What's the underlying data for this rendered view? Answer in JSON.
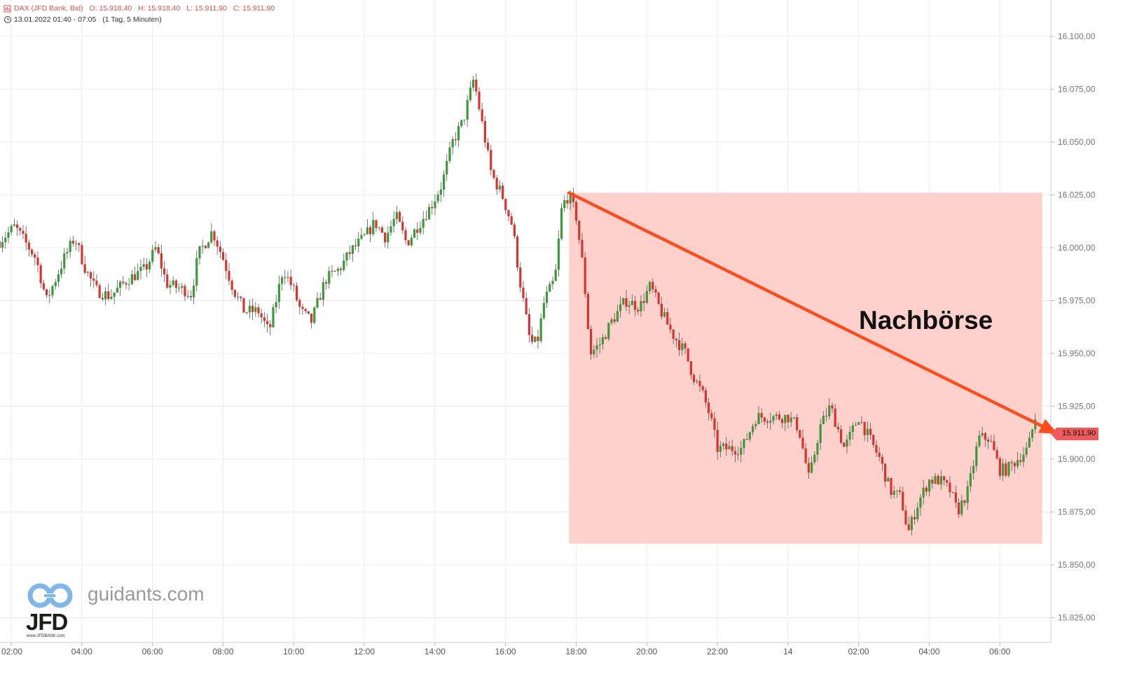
{
  "header": {
    "symbol": "DAX (JFD Bank, Bid)",
    "ohlc_open": "O: 15.918,40",
    "ohlc_high": "H: 15.918,40",
    "ohlc_low": "L: 15.911,90",
    "ohlc_close": "C: 15.911,90",
    "range": "13.01.2022 01:40 - 07:05",
    "interval": "(1 Tag, 5 Minuten)"
  },
  "watermark": {
    "site": "guidants.com",
    "logo": "JFD",
    "logo_sub": "www.JFDBANK.com"
  },
  "annotation": {
    "text": "Nachbörse"
  },
  "last_price": {
    "label": "15.911,90",
    "value": 15911.9
  },
  "colors": {
    "up": "#3a9a3a",
    "down": "#d9332f",
    "highlight": "#ffcfc9",
    "arrow": "#ff4d1f",
    "grid": "#ececec"
  },
  "chart_data": {
    "type": "candlestick",
    "ylim": [
      15810,
      16115
    ],
    "y_ticks": [
      15825,
      15850,
      15875,
      15900,
      15925,
      15950,
      15975,
      16000,
      16025,
      16050,
      16075,
      16100
    ],
    "y_tick_labels": [
      "15.825,00",
      "15.850,00",
      "15.875,00",
      "15.900,00",
      "15.925,00",
      "15.950,00",
      "15.975,00",
      "16.000,00",
      "16.025,00",
      "16.050,00",
      "16.075,00",
      "16.100,00"
    ],
    "x_ticks": [
      "02:00",
      "04:00",
      "06:00",
      "08:00",
      "10:00",
      "12:00",
      "14:00",
      "16:00",
      "18:00",
      "20:00",
      "22:00",
      "14",
      "02:00",
      "04:00",
      "06:00"
    ],
    "x_tick_hours": [
      2,
      4,
      6,
      8,
      10,
      12,
      14,
      16,
      18,
      20,
      22,
      24,
      26,
      28,
      30
    ],
    "x_start_hour": 1.67,
    "x_end_hour": 31.08,
    "candle_minutes": 5,
    "key_levels": [
      {
        "h": 1.67,
        "v": 16003
      },
      {
        "h": 2.1,
        "v": 16010
      },
      {
        "h": 2.7,
        "v": 15995
      },
      {
        "h": 3.0,
        "v": 15975
      },
      {
        "h": 3.5,
        "v": 15995
      },
      {
        "h": 3.8,
        "v": 16005
      },
      {
        "h": 4.1,
        "v": 15990
      },
      {
        "h": 4.4,
        "v": 15980
      },
      {
        "h": 4.8,
        "v": 15977
      },
      {
        "h": 5.3,
        "v": 15985
      },
      {
        "h": 5.8,
        "v": 15990
      },
      {
        "h": 6.1,
        "v": 16000
      },
      {
        "h": 6.4,
        "v": 15983
      },
      {
        "h": 6.9,
        "v": 15980
      },
      {
        "h": 7.1,
        "v": 15978
      },
      {
        "h": 7.3,
        "v": 15997
      },
      {
        "h": 7.7,
        "v": 16008
      },
      {
        "h": 8.0,
        "v": 15995
      },
      {
        "h": 8.3,
        "v": 15980
      },
      {
        "h": 8.6,
        "v": 15970
      },
      {
        "h": 9.0,
        "v": 15970
      },
      {
        "h": 9.3,
        "v": 15960
      },
      {
        "h": 9.7,
        "v": 15990
      },
      {
        "h": 10.0,
        "v": 15980
      },
      {
        "h": 10.2,
        "v": 15970
      },
      {
        "h": 10.5,
        "v": 15965
      },
      {
        "h": 10.9,
        "v": 15985
      },
      {
        "h": 11.3,
        "v": 15990
      },
      {
        "h": 11.6,
        "v": 15998
      },
      {
        "h": 12.0,
        "v": 16005
      },
      {
        "h": 12.3,
        "v": 16012
      },
      {
        "h": 12.6,
        "v": 16005
      },
      {
        "h": 12.9,
        "v": 16015
      },
      {
        "h": 13.2,
        "v": 16002
      },
      {
        "h": 13.5,
        "v": 16010
      },
      {
        "h": 13.9,
        "v": 16020
      },
      {
        "h": 14.2,
        "v": 16030
      },
      {
        "h": 14.5,
        "v": 16050
      },
      {
        "h": 14.8,
        "v": 16060
      },
      {
        "h": 15.1,
        "v": 16080
      },
      {
        "h": 15.3,
        "v": 16062
      },
      {
        "h": 15.6,
        "v": 16035
      },
      {
        "h": 15.9,
        "v": 16025
      },
      {
        "h": 16.2,
        "v": 16010
      },
      {
        "h": 16.4,
        "v": 15985
      },
      {
        "h": 16.7,
        "v": 15955
      },
      {
        "h": 16.9,
        "v": 15955
      },
      {
        "h": 17.1,
        "v": 15975
      },
      {
        "h": 17.4,
        "v": 15985
      },
      {
        "h": 17.6,
        "v": 16020
      },
      {
        "h": 17.8,
        "v": 16025
      },
      {
        "h": 18.0,
        "v": 16015
      },
      {
        "h": 18.2,
        "v": 15990
      },
      {
        "h": 18.4,
        "v": 15950
      },
      {
        "h": 18.7,
        "v": 15955
      },
      {
        "h": 19.0,
        "v": 15965
      },
      {
        "h": 19.4,
        "v": 15975
      },
      {
        "h": 19.8,
        "v": 15972
      },
      {
        "h": 20.1,
        "v": 15982
      },
      {
        "h": 20.4,
        "v": 15970
      },
      {
        "h": 20.7,
        "v": 15960
      },
      {
        "h": 21.1,
        "v": 15950
      },
      {
        "h": 21.3,
        "v": 15940
      },
      {
        "h": 21.6,
        "v": 15930
      },
      {
        "h": 21.8,
        "v": 15920
      },
      {
        "h": 22.0,
        "v": 15905
      },
      {
        "h": 22.3,
        "v": 15905
      },
      {
        "h": 22.7,
        "v": 15905
      },
      {
        "h": 23.1,
        "v": 15920
      },
      {
        "h": 23.5,
        "v": 15920
      },
      {
        "h": 24.0,
        "v": 15920
      },
      {
        "h": 24.3,
        "v": 15915
      },
      {
        "h": 24.6,
        "v": 15890
      },
      {
        "h": 24.9,
        "v": 15915
      },
      {
        "h": 25.2,
        "v": 15925
      },
      {
        "h": 25.6,
        "v": 15905
      },
      {
        "h": 26.0,
        "v": 15920
      },
      {
        "h": 26.3,
        "v": 15910
      },
      {
        "h": 26.6,
        "v": 15900
      },
      {
        "h": 26.9,
        "v": 15885
      },
      {
        "h": 27.2,
        "v": 15882
      },
      {
        "h": 27.4,
        "v": 15865
      },
      {
        "h": 27.7,
        "v": 15880
      },
      {
        "h": 28.0,
        "v": 15890
      },
      {
        "h": 28.3,
        "v": 15890
      },
      {
        "h": 28.6,
        "v": 15885
      },
      {
        "h": 28.8,
        "v": 15875
      },
      {
        "h": 29.1,
        "v": 15885
      },
      {
        "h": 29.4,
        "v": 15910
      },
      {
        "h": 29.7,
        "v": 15910
      },
      {
        "h": 30.0,
        "v": 15895
      },
      {
        "h": 30.2,
        "v": 15895
      },
      {
        "h": 30.5,
        "v": 15900
      },
      {
        "h": 30.8,
        "v": 15905
      },
      {
        "h": 31.0,
        "v": 15920
      },
      {
        "h": 31.08,
        "v": 15911.9
      }
    ],
    "highlight_zone": {
      "x_start_hour": 17.8,
      "x_end_hour": 31.2,
      "y_low": 15860,
      "y_high": 16026
    },
    "trend_arrow": {
      "from_hour": 17.8,
      "from_value": 16026,
      "to_hour": 31.65,
      "to_value": 15911.9
    }
  }
}
